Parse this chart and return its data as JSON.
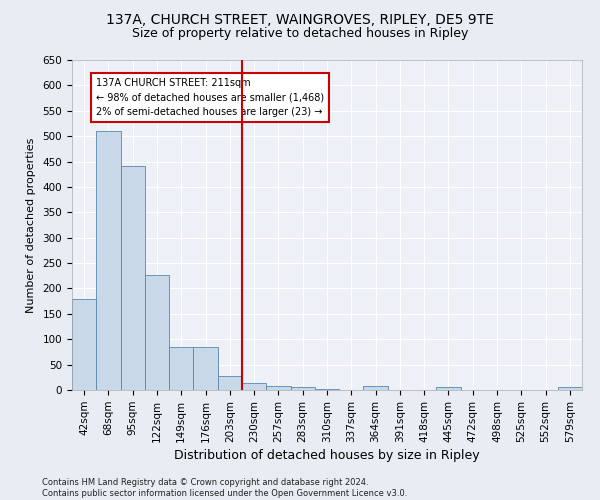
{
  "title_line1": "137A, CHURCH STREET, WAINGROVES, RIPLEY, DE5 9TE",
  "title_line2": "Size of property relative to detached houses in Ripley",
  "xlabel": "Distribution of detached houses by size in Ripley",
  "ylabel": "Number of detached properties",
  "footnote": "Contains HM Land Registry data © Crown copyright and database right 2024.\nContains public sector information licensed under the Open Government Licence v3.0.",
  "categories": [
    "42sqm",
    "68sqm",
    "95sqm",
    "122sqm",
    "149sqm",
    "176sqm",
    "203sqm",
    "230sqm",
    "257sqm",
    "283sqm",
    "310sqm",
    "337sqm",
    "364sqm",
    "391sqm",
    "418sqm",
    "445sqm",
    "472sqm",
    "498sqm",
    "525sqm",
    "552sqm",
    "579sqm"
  ],
  "values": [
    180,
    510,
    442,
    226,
    84,
    84,
    28,
    14,
    8,
    5,
    1,
    0,
    8,
    0,
    0,
    5,
    0,
    0,
    0,
    0,
    5
  ],
  "bar_color": "#c8d8e8",
  "bar_edge_color": "#5588aa",
  "vline_x_index": 6.5,
  "vline_color": "#cc0000",
  "annotation_box_text": "137A CHURCH STREET: 211sqm\n← 98% of detached houses are smaller (1,468)\n2% of semi-detached houses are larger (23) →",
  "ylim": [
    0,
    650
  ],
  "yticks": [
    0,
    50,
    100,
    150,
    200,
    250,
    300,
    350,
    400,
    450,
    500,
    550,
    600,
    650
  ],
  "background_color": "#e8edf3",
  "plot_bg_color": "#edf1f7",
  "title1_fontsize": 10,
  "title2_fontsize": 9,
  "xlabel_fontsize": 9,
  "ylabel_fontsize": 8,
  "tick_fontsize": 7.5,
  "footnote_fontsize": 6
}
